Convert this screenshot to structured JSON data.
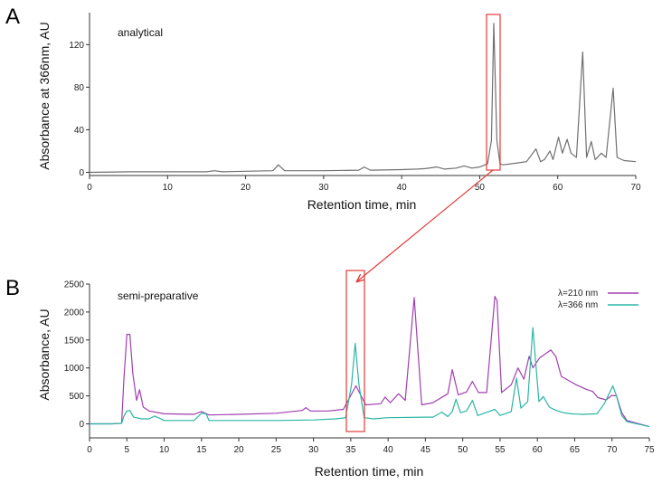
{
  "chart_data": [
    {
      "panel": "A",
      "type": "line",
      "annotation": "analytical",
      "xlabel": "Retention time, min",
      "ylabel": "Absorbance at 366nm, AU",
      "xlim": [
        0,
        70
      ],
      "ylim": [
        -3,
        150
      ],
      "xticks": [
        0,
        10,
        20,
        30,
        40,
        50,
        60,
        70
      ],
      "yticks": [
        0,
        40,
        80,
        120
      ],
      "grid": false,
      "series": [
        {
          "color": "#707070",
          "x": [
            0,
            5,
            10,
            15,
            16,
            17,
            20,
            23.5,
            24.2,
            25,
            30,
            34.5,
            35.2,
            36,
            40,
            42,
            43,
            44.5,
            45.5,
            47,
            48,
            49,
            50,
            51,
            51.5,
            51.8,
            52.2,
            52.6,
            53,
            54,
            55,
            56,
            57.2,
            57.8,
            58.3,
            59,
            59.4,
            60.1,
            60.6,
            61.2,
            61.7,
            62.4,
            63.2,
            63.7,
            64.3,
            64.8,
            65.6,
            66.2,
            67.1,
            67.6,
            68.5,
            70
          ],
          "y": [
            0,
            0.5,
            0.5,
            0.5,
            1.5,
            0.5,
            1,
            1.5,
            7,
            1.5,
            1.5,
            2,
            5,
            2,
            2.5,
            3,
            3.5,
            5,
            3,
            4,
            6,
            4,
            5,
            8,
            30,
            140,
            30,
            8,
            7,
            8,
            9,
            10,
            22,
            10,
            12,
            20,
            12,
            33,
            18,
            31,
            18,
            14,
            113,
            14,
            29,
            12,
            18,
            14,
            79,
            14,
            11,
            10
          ]
        }
      ]
    },
    {
      "panel": "B",
      "type": "line",
      "annotation": "semi-preparative",
      "xlabel": "Retention time, min",
      "ylabel": "Absorbance, AU",
      "xlim": [
        0,
        75
      ],
      "ylim": [
        -250,
        2500
      ],
      "xticks": [
        0,
        5,
        10,
        15,
        20,
        25,
        30,
        35,
        40,
        45,
        50,
        55,
        60,
        65,
        70,
        75
      ],
      "yticks": [
        0,
        500,
        1000,
        1500,
        2000,
        2500
      ],
      "grid": false,
      "legend": "top-right",
      "series": [
        {
          "name": "λ=210 nm",
          "color": "#a13fb0",
          "x": [
            0,
            3,
            4.3,
            4.6,
            5,
            5.4,
            5.8,
            6.3,
            6.7,
            7.2,
            8,
            10,
            14,
            15,
            16,
            20,
            25,
            28.5,
            29,
            29.6,
            32,
            34,
            35.7,
            37,
            39,
            39.6,
            40.3,
            41.4,
            42.3,
            43.5,
            44.5,
            46,
            48,
            48.6,
            49.4,
            50.5,
            51.3,
            52.1,
            53.2,
            54.3,
            54.6,
            55.2,
            56.5,
            57.4,
            58.2,
            58.9,
            59.4,
            60.3,
            61.8,
            62.5,
            63.2,
            64.4,
            65.2,
            66.5,
            67.4,
            68.1,
            69.2,
            70,
            70.6,
            71.3,
            72,
            75
          ],
          "y": [
            0,
            0,
            10,
            800,
            1600,
            1600,
            900,
            420,
            610,
            300,
            230,
            180,
            170,
            220,
            160,
            170,
            190,
            240,
            290,
            230,
            230,
            260,
            680,
            340,
            360,
            480,
            380,
            540,
            420,
            2260,
            340,
            380,
            540,
            970,
            520,
            570,
            760,
            560,
            560,
            2280,
            2200,
            560,
            700,
            1000,
            800,
            1210,
            1000,
            1180,
            1320,
            1200,
            850,
            760,
            700,
            620,
            580,
            470,
            430,
            510,
            500,
            200,
            60,
            -50
          ]
        },
        {
          "name": "λ=366 nm",
          "color": "#2bb5a5",
          "x": [
            0,
            3,
            4.3,
            4.6,
            5,
            5.4,
            5.9,
            7,
            8,
            8.7,
            9.4,
            10,
            14,
            15,
            15.6,
            16,
            20,
            25,
            30,
            33,
            34.3,
            35.1,
            35.6,
            36.1,
            36.8,
            38,
            40,
            45,
            46,
            47.2,
            48,
            48.6,
            49.1,
            49.7,
            50.5,
            51.3,
            52,
            53.5,
            54.3,
            55,
            56.5,
            57.2,
            57.8,
            58.7,
            59.4,
            60.2,
            60.8,
            61.6,
            62.5,
            63.5,
            64.5,
            66,
            68,
            69,
            70.1,
            70.6,
            71.3,
            72,
            75
          ],
          "y": [
            0,
            0,
            10,
            140,
            230,
            240,
            120,
            90,
            90,
            140,
            100,
            60,
            60,
            190,
            180,
            60,
            60,
            60,
            70,
            90,
            110,
            700,
            1440,
            700,
            110,
            90,
            110,
            120,
            120,
            210,
            130,
            220,
            440,
            200,
            230,
            420,
            150,
            220,
            260,
            150,
            220,
            820,
            280,
            400,
            1720,
            400,
            490,
            300,
            240,
            200,
            180,
            170,
            180,
            370,
            680,
            500,
            150,
            40,
            -50
          ]
        }
      ]
    }
  ]
}
